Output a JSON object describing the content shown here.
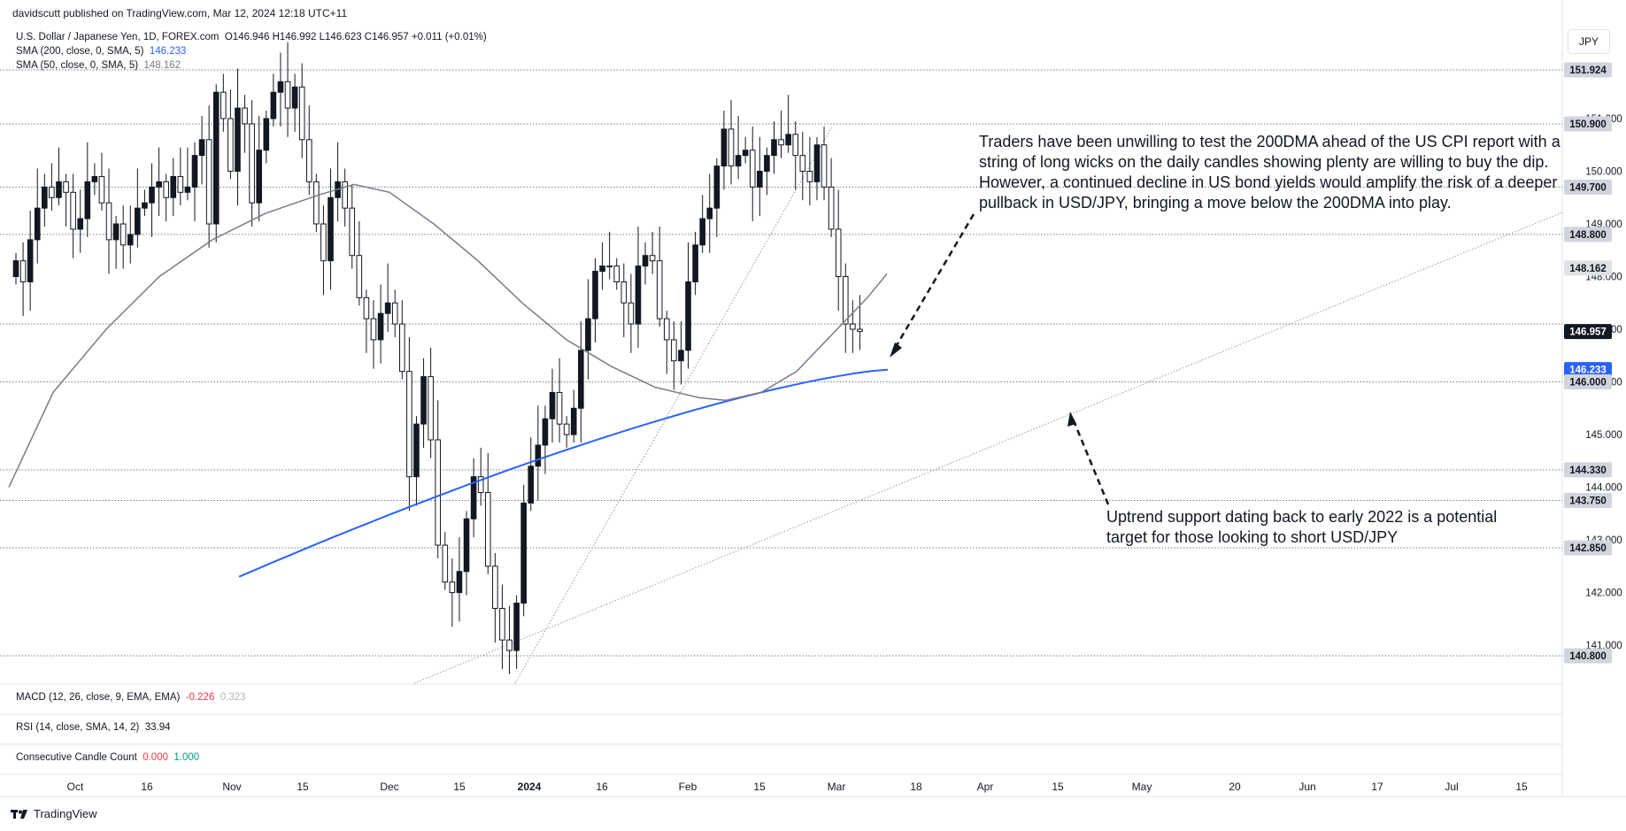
{
  "header": {
    "published": "davidscutt published on TradingView.com, Mar 12, 2024 12:18 UTC+11"
  },
  "legend": {
    "main": "U.S. Dollar / Japanese Yen, 1D, FOREX.com",
    "ohlc": "O146.946  H146.992  L146.623  C146.957  +0.011 (+0.01%)",
    "sma200_label": "SMA (200, close, 0, SMA, 5)",
    "sma200_value": "146.233",
    "sma50_label": "SMA (50, close, 0, SMA, 5)",
    "sma50_value": "148.162"
  },
  "currency_button": "JPY",
  "indicators": {
    "macd_label": "MACD (12, 26, close, 9, EMA, EMA)",
    "macd_value1": "-0.226",
    "macd_value2": "0.323",
    "rsi_label": "RSI (14, close, SMA, 14, 2)",
    "rsi_value": "33.94",
    "ccc_label": "Consecutive Candle Count",
    "ccc_value1": "0.000",
    "ccc_value2": "1.000"
  },
  "annotations": {
    "top": "Traders have been unwilling to test the 200DMA ahead of the US CPI report with a string of long wicks on the daily candles showing plenty are willing to buy the dip. However, a continued decline in US bond yields would amplify the risk of a deeper pullback in USD/JPY, bringing a move below the 200DMA into play.",
    "bottom": "Uptrend support dating back to early 2022 is a potential target for those looking to short USD/JPY"
  },
  "footer": {
    "brand": "TradingView"
  },
  "colors": {
    "up": "#131722",
    "down_fill": "#ffffff",
    "sma200": "#2962ff",
    "sma50": "#787b86",
    "hline": "#9598a1"
  },
  "chart_data": {
    "type": "candlestick",
    "symbol": "USD/JPY",
    "timeframe": "1D",
    "ylim": [
      140.3,
      152.2
    ],
    "y_ticks": [
      "141.000",
      "142.000",
      "143.000",
      "144.000",
      "145.000",
      "146.000",
      "147.000",
      "148.000",
      "149.000",
      "150.000",
      "151.000"
    ],
    "x_tick_labels": [
      "Oct",
      "16",
      "Nov",
      "15",
      "Dec",
      "15",
      "2024",
      "16",
      "Feb",
      "15",
      "Mar",
      "18",
      "Apr",
      "15",
      "May",
      "20",
      "Jun",
      "17",
      "Jul",
      "15"
    ],
    "horizontal_levels": [
      151.924,
      150.9,
      149.7,
      148.8,
      147.1,
      146.0,
      144.33,
      143.75,
      142.85,
      140.8
    ],
    "price_labels": [
      {
        "value": "151.924",
        "style": "gray"
      },
      {
        "value": "150.900",
        "style": "gray"
      },
      {
        "value": "149.700",
        "style": "gray"
      },
      {
        "value": "148.800",
        "style": "gray"
      },
      {
        "value": "148.162",
        "style": "sma50"
      },
      {
        "value": "146.957",
        "style": "black"
      },
      {
        "value": "146.233",
        "style": "sma200"
      },
      {
        "value": "146.000",
        "style": "gray"
      },
      {
        "value": "144.330",
        "style": "gray"
      },
      {
        "value": "143.750",
        "style": "gray"
      },
      {
        "value": "142.850",
        "style": "gray"
      },
      {
        "value": "140.800",
        "style": "gray"
      }
    ],
    "candles_close": [
      148.3,
      147.9,
      148.7,
      149.3,
      149.7,
      149.5,
      149.8,
      149.6,
      148.9,
      149.1,
      149.8,
      149.9,
      149.4,
      148.7,
      149.0,
      148.6,
      148.8,
      149.3,
      149.4,
      149.7,
      149.8,
      149.5,
      149.9,
      149.6,
      149.7,
      150.3,
      150.6,
      149.0,
      151.5,
      151.0,
      150.0,
      151.2,
      150.9,
      149.4,
      150.4,
      151.0,
      151.5,
      151.7,
      151.2,
      151.6,
      150.6,
      149.8,
      149.0,
      148.3,
      149.5,
      149.8,
      149.3,
      148.4,
      147.6,
      147.2,
      146.8,
      147.3,
      147.5,
      147.1,
      146.2,
      144.2,
      145.2,
      146.1,
      144.9,
      142.9,
      142.2,
      142.0,
      142.4,
      143.4,
      144.2,
      143.9,
      142.5,
      141.7,
      141.1,
      140.9,
      141.8,
      143.7,
      144.4,
      144.8,
      145.3,
      145.8,
      145.2,
      145.0,
      145.5,
      146.6,
      147.2,
      148.1,
      148.2,
      148.2,
      147.9,
      147.5,
      147.1,
      148.2,
      148.4,
      148.3,
      147.2,
      146.8,
      146.4,
      146.6,
      147.9,
      148.6,
      149.1,
      149.3,
      150.1,
      150.8,
      150.1,
      150.3,
      150.4,
      149.7,
      150.0,
      150.3,
      150.6,
      150.5,
      150.7,
      150.3,
      150.0,
      149.8,
      150.5,
      149.7,
      148.9,
      148.0,
      147.1,
      147.0,
      146.957
    ],
    "sma200_range": [
      142.3,
      146.233
    ],
    "sma50_range": [
      144.2,
      148.162
    ]
  }
}
